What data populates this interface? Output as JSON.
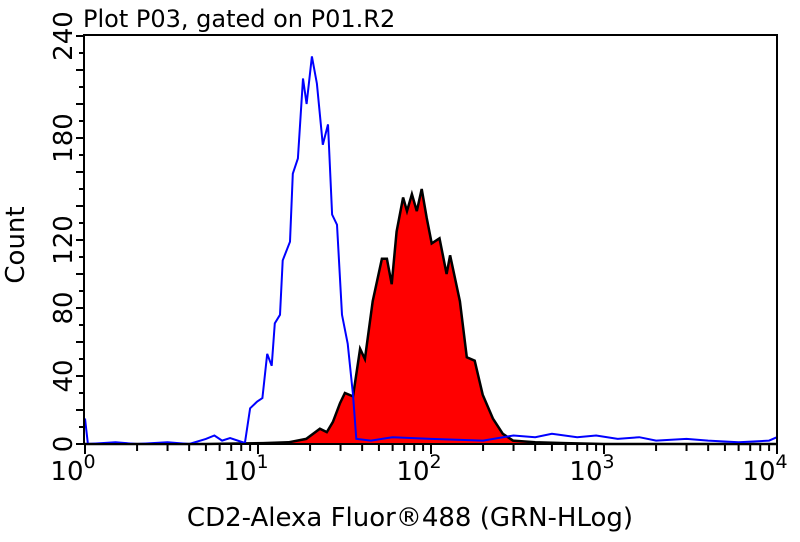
{
  "chart_data": {
    "type": "area",
    "title": "Plot P03, gated on P01.R2",
    "xlabel": "CD2-Alexa Fluor®488 (GRN-HLog)",
    "ylabel": "Count",
    "xscale": "log",
    "xlim": [
      1,
      10000
    ],
    "ylim": [
      0,
      240
    ],
    "x_ticks": [
      {
        "base": "10",
        "exp": "0",
        "value": 1
      },
      {
        "base": "10",
        "exp": "1",
        "value": 10
      },
      {
        "base": "10",
        "exp": "2",
        "value": 100
      },
      {
        "base": "10",
        "exp": "3",
        "value": 1000
      },
      {
        "base": "10",
        "exp": "4",
        "value": 10000
      }
    ],
    "y_ticks": [
      "0",
      "40",
      "80",
      "120",
      "180",
      "240"
    ],
    "grid": false,
    "legend": "none",
    "series": [
      {
        "style": "outline",
        "color": "#0000ff",
        "points": [
          [
            1,
            15
          ],
          [
            1.04,
            0
          ],
          [
            1.5,
            1
          ],
          [
            2,
            0
          ],
          [
            3,
            1
          ],
          [
            4,
            0
          ],
          [
            5,
            3
          ],
          [
            5.6,
            5
          ],
          [
            6.2,
            2
          ],
          [
            6.9,
            3.5
          ],
          [
            8.4,
            0.6
          ],
          [
            9.0,
            21
          ],
          [
            9.9,
            25
          ],
          [
            10.6,
            27
          ],
          [
            11.3,
            53
          ],
          [
            12.0,
            46
          ],
          [
            12.5,
            71
          ],
          [
            13.4,
            76
          ],
          [
            13.9,
            108
          ],
          [
            15.3,
            119
          ],
          [
            15.9,
            159
          ],
          [
            17.0,
            168
          ],
          [
            18.2,
            215
          ],
          [
            19.1,
            200
          ],
          [
            20.5,
            228
          ],
          [
            21.9,
            212
          ],
          [
            23.7,
            176
          ],
          [
            25.4,
            188
          ],
          [
            26.8,
            135
          ],
          [
            28.6,
            129
          ],
          [
            30.6,
            76
          ],
          [
            33.0,
            59
          ],
          [
            35.4,
            29
          ],
          [
            37,
            3
          ],
          [
            45,
            2
          ],
          [
            60,
            4
          ],
          [
            100,
            3
          ],
          [
            200,
            2
          ],
          [
            300,
            5
          ],
          [
            400,
            4
          ],
          [
            500,
            6
          ],
          [
            700,
            4
          ],
          [
            900,
            5
          ],
          [
            1200,
            3
          ],
          [
            1600,
            4
          ],
          [
            2000,
            2
          ],
          [
            3000,
            3
          ],
          [
            4000,
            2
          ],
          [
            6000,
            1
          ],
          [
            9000,
            2
          ],
          [
            10000,
            4
          ]
        ]
      },
      {
        "style": "filled",
        "color": "#ff0000",
        "line_color": "#000000",
        "points": [
          [
            1,
            0
          ],
          [
            5,
            0
          ],
          [
            10.7,
            0.5
          ],
          [
            15,
            1
          ],
          [
            19,
            3
          ],
          [
            22.8,
            9
          ],
          [
            25,
            7
          ],
          [
            27.1,
            13
          ],
          [
            29.8,
            24
          ],
          [
            31.8,
            30
          ],
          [
            35.4,
            28
          ],
          [
            38.9,
            56
          ],
          [
            41.5,
            50
          ],
          [
            46.0,
            84
          ],
          [
            52.0,
            109
          ],
          [
            55.6,
            109
          ],
          [
            59.3,
            94
          ],
          [
            63.3,
            125
          ],
          [
            69,
            145
          ],
          [
            72.7,
            137
          ],
          [
            77.6,
            147
          ],
          [
            82.8,
            137
          ],
          [
            88.4,
            150
          ],
          [
            94.4,
            133
          ],
          [
            101,
            118
          ],
          [
            112,
            121
          ],
          [
            123,
            100
          ],
          [
            129,
            111
          ],
          [
            147,
            84
          ],
          [
            161,
            51
          ],
          [
            179,
            49
          ],
          [
            199,
            29
          ],
          [
            228,
            15
          ],
          [
            260,
            6
          ],
          [
            298,
            2
          ],
          [
            400,
            1
          ],
          [
            600,
            0.5
          ],
          [
            1000,
            0
          ],
          [
            10000,
            0
          ]
        ]
      }
    ]
  }
}
